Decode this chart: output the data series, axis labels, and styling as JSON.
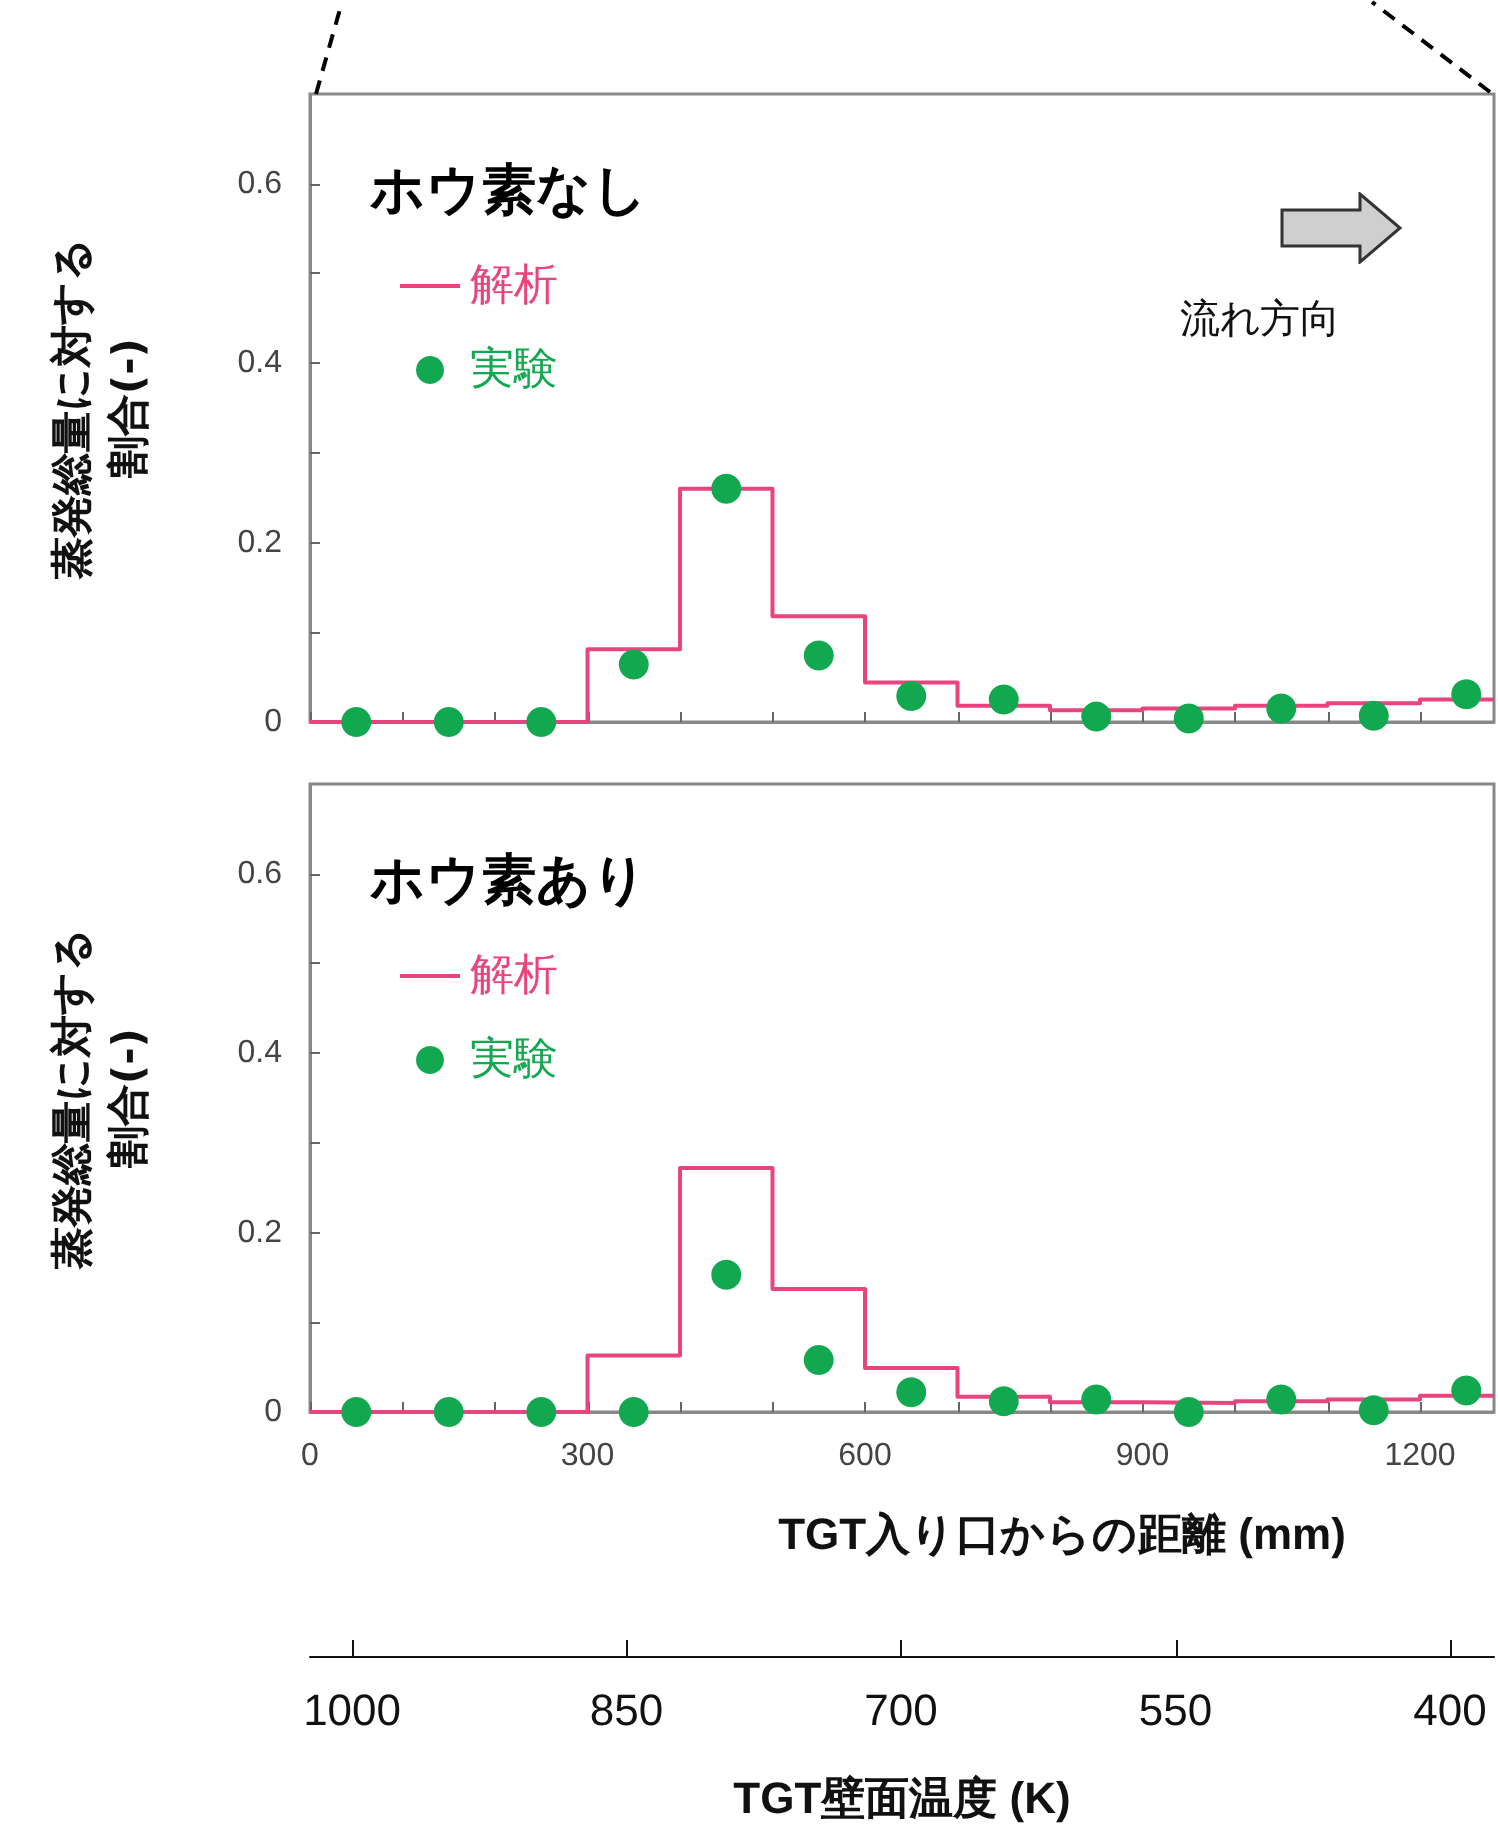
{
  "chart_data": [
    {
      "type": "step",
      "title": "ホウ素なし",
      "ylabel": "蒸発総量に対する割合(-)",
      "annotations": [
        "流れ方向"
      ],
      "legend": "top left",
      "tick_labels": "y",
      "xlim": [
        0,
        1280
      ],
      "ylim": [
        0,
        0.7
      ],
      "xticks": [
        0,
        {
          "value": 100,
          "label": null
        },
        {
          "value": 200,
          "label": null
        },
        300,
        {
          "value": 400,
          "label": null
        },
        {
          "value": 500,
          "label": null
        },
        600,
        {
          "value": 700,
          "label": null
        },
        {
          "value": 800,
          "label": null
        },
        900,
        {
          "value": 1000,
          "label": null
        },
        {
          "value": 1100,
          "label": null
        },
        1200
      ],
      "yticks": [
        0,
        {
          "value": 0.1,
          "label": null
        },
        0.2,
        {
          "value": 0.3,
          "label": null
        },
        0.4,
        {
          "value": 0.5,
          "label": null
        },
        0.6
      ],
      "series": [
        {
          "name": "解析",
          "type": "step",
          "color": "#e8457f",
          "x": [
            0,
            300,
            400,
            500,
            600,
            700,
            800,
            900,
            1000,
            1100,
            1200,
            1280
          ],
          "values": [
            0,
            0.081,
            0.26,
            0.118,
            0.044,
            0.018,
            0.013,
            0.015,
            0.018,
            0.021,
            0.025,
            0.025
          ]
        },
        {
          "name": "実験",
          "type": "scatter",
          "marker": "circle",
          "color": "#12a850",
          "x": [
            50,
            150,
            250,
            350,
            450,
            550,
            650,
            750,
            850,
            950,
            1050,
            1150,
            1250
          ],
          "values": [
            0,
            0,
            0,
            0.064,
            0.26,
            0.074,
            0.029,
            0.025,
            0.006,
            0.004,
            0.015,
            0.007,
            0.031
          ]
        }
      ]
    },
    {
      "type": "step",
      "title": "ホウ素あり",
      "ylabel": "蒸発総量に対する割合(-)",
      "xlabel": "TGT入り口からの距離 (mm)",
      "x2label": "TGT壁面温度 (K)",
      "legend": "top left",
      "xlim": [
        0,
        1280
      ],
      "ylim": [
        0,
        0.7
      ],
      "x2lim": [
        1023,
        376
      ],
      "xticks": [
        0,
        {
          "value": 100,
          "label": null
        },
        {
          "value": 200,
          "label": null
        },
        300,
        {
          "value": 400,
          "label": null
        },
        {
          "value": 500,
          "label": null
        },
        600,
        {
          "value": 700,
          "label": null
        },
        {
          "value": 800,
          "label": null
        },
        900,
        {
          "value": 1000,
          "label": null
        },
        {
          "value": 1100,
          "label": null
        },
        1200
      ],
      "x2ticks": [
        1000,
        850,
        700,
        550,
        400
      ],
      "yticks": [
        0,
        {
          "value": 0.1,
          "label": null
        },
        0.2,
        {
          "value": 0.3,
          "label": null
        },
        0.4,
        {
          "value": 0.5,
          "label": null
        },
        0.6
      ],
      "series": [
        {
          "name": "解析",
          "type": "step",
          "color": "#e8457f",
          "x": [
            0,
            300,
            400,
            500,
            600,
            700,
            800,
            900,
            1000,
            1100,
            1200,
            1280
          ],
          "values": [
            0,
            0.063,
            0.272,
            0.137,
            0.049,
            0.017,
            0.011,
            0.01,
            0.012,
            0.014,
            0.018,
            0.018
          ]
        },
        {
          "name": "実験",
          "type": "scatter",
          "marker": "circle",
          "color": "#12a850",
          "x": [
            50,
            150,
            250,
            350,
            450,
            550,
            650,
            750,
            850,
            950,
            1050,
            1150,
            1250
          ],
          "values": [
            0,
            0,
            0,
            0,
            0.153,
            0.058,
            0.022,
            0.012,
            0.014,
            0,
            0.014,
            0.002,
            0.024
          ]
        }
      ]
    }
  ]
}
